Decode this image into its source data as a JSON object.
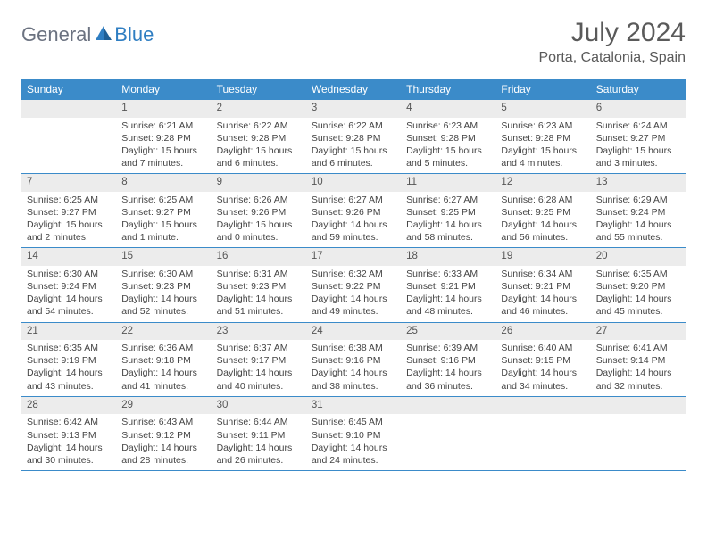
{
  "logo": {
    "part1": "General",
    "part2": "Blue"
  },
  "title": "July 2024",
  "location": "Porta, Catalonia, Spain",
  "colors": {
    "header_bg": "#3b8bc9",
    "header_text": "#ffffff",
    "daynum_bg": "#ececec",
    "row_border": "#3b8bc9",
    "text": "#444444",
    "title_text": "#5a5a5a",
    "logo_gray": "#6b7280",
    "logo_blue": "#2f7ec2"
  },
  "weekdays": [
    "Sunday",
    "Monday",
    "Tuesday",
    "Wednesday",
    "Thursday",
    "Friday",
    "Saturday"
  ],
  "weeks": [
    [
      {
        "empty": true
      },
      {
        "num": "1",
        "sunrise": "Sunrise: 6:21 AM",
        "sunset": "Sunset: 9:28 PM",
        "daylight": "Daylight: 15 hours and 7 minutes."
      },
      {
        "num": "2",
        "sunrise": "Sunrise: 6:22 AM",
        "sunset": "Sunset: 9:28 PM",
        "daylight": "Daylight: 15 hours and 6 minutes."
      },
      {
        "num": "3",
        "sunrise": "Sunrise: 6:22 AM",
        "sunset": "Sunset: 9:28 PM",
        "daylight": "Daylight: 15 hours and 6 minutes."
      },
      {
        "num": "4",
        "sunrise": "Sunrise: 6:23 AM",
        "sunset": "Sunset: 9:28 PM",
        "daylight": "Daylight: 15 hours and 5 minutes."
      },
      {
        "num": "5",
        "sunrise": "Sunrise: 6:23 AM",
        "sunset": "Sunset: 9:28 PM",
        "daylight": "Daylight: 15 hours and 4 minutes."
      },
      {
        "num": "6",
        "sunrise": "Sunrise: 6:24 AM",
        "sunset": "Sunset: 9:27 PM",
        "daylight": "Daylight: 15 hours and 3 minutes."
      }
    ],
    [
      {
        "num": "7",
        "sunrise": "Sunrise: 6:25 AM",
        "sunset": "Sunset: 9:27 PM",
        "daylight": "Daylight: 15 hours and 2 minutes."
      },
      {
        "num": "8",
        "sunrise": "Sunrise: 6:25 AM",
        "sunset": "Sunset: 9:27 PM",
        "daylight": "Daylight: 15 hours and 1 minute."
      },
      {
        "num": "9",
        "sunrise": "Sunrise: 6:26 AM",
        "sunset": "Sunset: 9:26 PM",
        "daylight": "Daylight: 15 hours and 0 minutes."
      },
      {
        "num": "10",
        "sunrise": "Sunrise: 6:27 AM",
        "sunset": "Sunset: 9:26 PM",
        "daylight": "Daylight: 14 hours and 59 minutes."
      },
      {
        "num": "11",
        "sunrise": "Sunrise: 6:27 AM",
        "sunset": "Sunset: 9:25 PM",
        "daylight": "Daylight: 14 hours and 58 minutes."
      },
      {
        "num": "12",
        "sunrise": "Sunrise: 6:28 AM",
        "sunset": "Sunset: 9:25 PM",
        "daylight": "Daylight: 14 hours and 56 minutes."
      },
      {
        "num": "13",
        "sunrise": "Sunrise: 6:29 AM",
        "sunset": "Sunset: 9:24 PM",
        "daylight": "Daylight: 14 hours and 55 minutes."
      }
    ],
    [
      {
        "num": "14",
        "sunrise": "Sunrise: 6:30 AM",
        "sunset": "Sunset: 9:24 PM",
        "daylight": "Daylight: 14 hours and 54 minutes."
      },
      {
        "num": "15",
        "sunrise": "Sunrise: 6:30 AM",
        "sunset": "Sunset: 9:23 PM",
        "daylight": "Daylight: 14 hours and 52 minutes."
      },
      {
        "num": "16",
        "sunrise": "Sunrise: 6:31 AM",
        "sunset": "Sunset: 9:23 PM",
        "daylight": "Daylight: 14 hours and 51 minutes."
      },
      {
        "num": "17",
        "sunrise": "Sunrise: 6:32 AM",
        "sunset": "Sunset: 9:22 PM",
        "daylight": "Daylight: 14 hours and 49 minutes."
      },
      {
        "num": "18",
        "sunrise": "Sunrise: 6:33 AM",
        "sunset": "Sunset: 9:21 PM",
        "daylight": "Daylight: 14 hours and 48 minutes."
      },
      {
        "num": "19",
        "sunrise": "Sunrise: 6:34 AM",
        "sunset": "Sunset: 9:21 PM",
        "daylight": "Daylight: 14 hours and 46 minutes."
      },
      {
        "num": "20",
        "sunrise": "Sunrise: 6:35 AM",
        "sunset": "Sunset: 9:20 PM",
        "daylight": "Daylight: 14 hours and 45 minutes."
      }
    ],
    [
      {
        "num": "21",
        "sunrise": "Sunrise: 6:35 AM",
        "sunset": "Sunset: 9:19 PM",
        "daylight": "Daylight: 14 hours and 43 minutes."
      },
      {
        "num": "22",
        "sunrise": "Sunrise: 6:36 AM",
        "sunset": "Sunset: 9:18 PM",
        "daylight": "Daylight: 14 hours and 41 minutes."
      },
      {
        "num": "23",
        "sunrise": "Sunrise: 6:37 AM",
        "sunset": "Sunset: 9:17 PM",
        "daylight": "Daylight: 14 hours and 40 minutes."
      },
      {
        "num": "24",
        "sunrise": "Sunrise: 6:38 AM",
        "sunset": "Sunset: 9:16 PM",
        "daylight": "Daylight: 14 hours and 38 minutes."
      },
      {
        "num": "25",
        "sunrise": "Sunrise: 6:39 AM",
        "sunset": "Sunset: 9:16 PM",
        "daylight": "Daylight: 14 hours and 36 minutes."
      },
      {
        "num": "26",
        "sunrise": "Sunrise: 6:40 AM",
        "sunset": "Sunset: 9:15 PM",
        "daylight": "Daylight: 14 hours and 34 minutes."
      },
      {
        "num": "27",
        "sunrise": "Sunrise: 6:41 AM",
        "sunset": "Sunset: 9:14 PM",
        "daylight": "Daylight: 14 hours and 32 minutes."
      }
    ],
    [
      {
        "num": "28",
        "sunrise": "Sunrise: 6:42 AM",
        "sunset": "Sunset: 9:13 PM",
        "daylight": "Daylight: 14 hours and 30 minutes."
      },
      {
        "num": "29",
        "sunrise": "Sunrise: 6:43 AM",
        "sunset": "Sunset: 9:12 PM",
        "daylight": "Daylight: 14 hours and 28 minutes."
      },
      {
        "num": "30",
        "sunrise": "Sunrise: 6:44 AM",
        "sunset": "Sunset: 9:11 PM",
        "daylight": "Daylight: 14 hours and 26 minutes."
      },
      {
        "num": "31",
        "sunrise": "Sunrise: 6:45 AM",
        "sunset": "Sunset: 9:10 PM",
        "daylight": "Daylight: 14 hours and 24 minutes."
      },
      {
        "empty": true
      },
      {
        "empty": true
      },
      {
        "empty": true
      }
    ]
  ]
}
